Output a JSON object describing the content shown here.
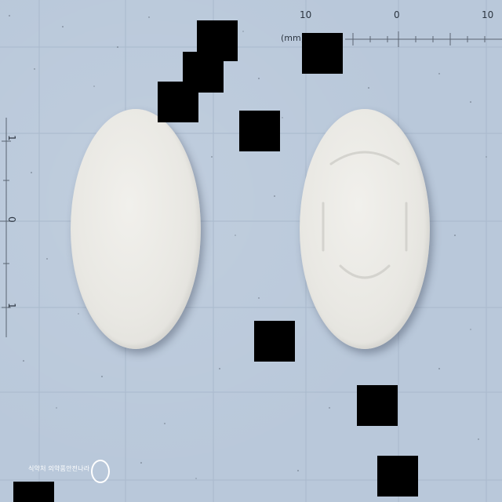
{
  "scene": {
    "description_label": "",
    "background_color": "#b9c8da",
    "tablet_color": "#ebeae5",
    "redaction_color": "#000000"
  },
  "ruler": {
    "unit_label": "(mm)",
    "top_ticks": [
      "10",
      "0",
      "10"
    ],
    "left_ticks": [
      "1",
      "0",
      "1"
    ]
  },
  "watermark": {
    "text": "식약처 의약품안전나라",
    "logo": "circle-logo-icon"
  },
  "tablets": [
    {
      "name": "left-tablet",
      "shape": "oval"
    },
    {
      "name": "right-tablet",
      "shape": "oval",
      "imprint": "embossed-mark-icon"
    }
  ]
}
